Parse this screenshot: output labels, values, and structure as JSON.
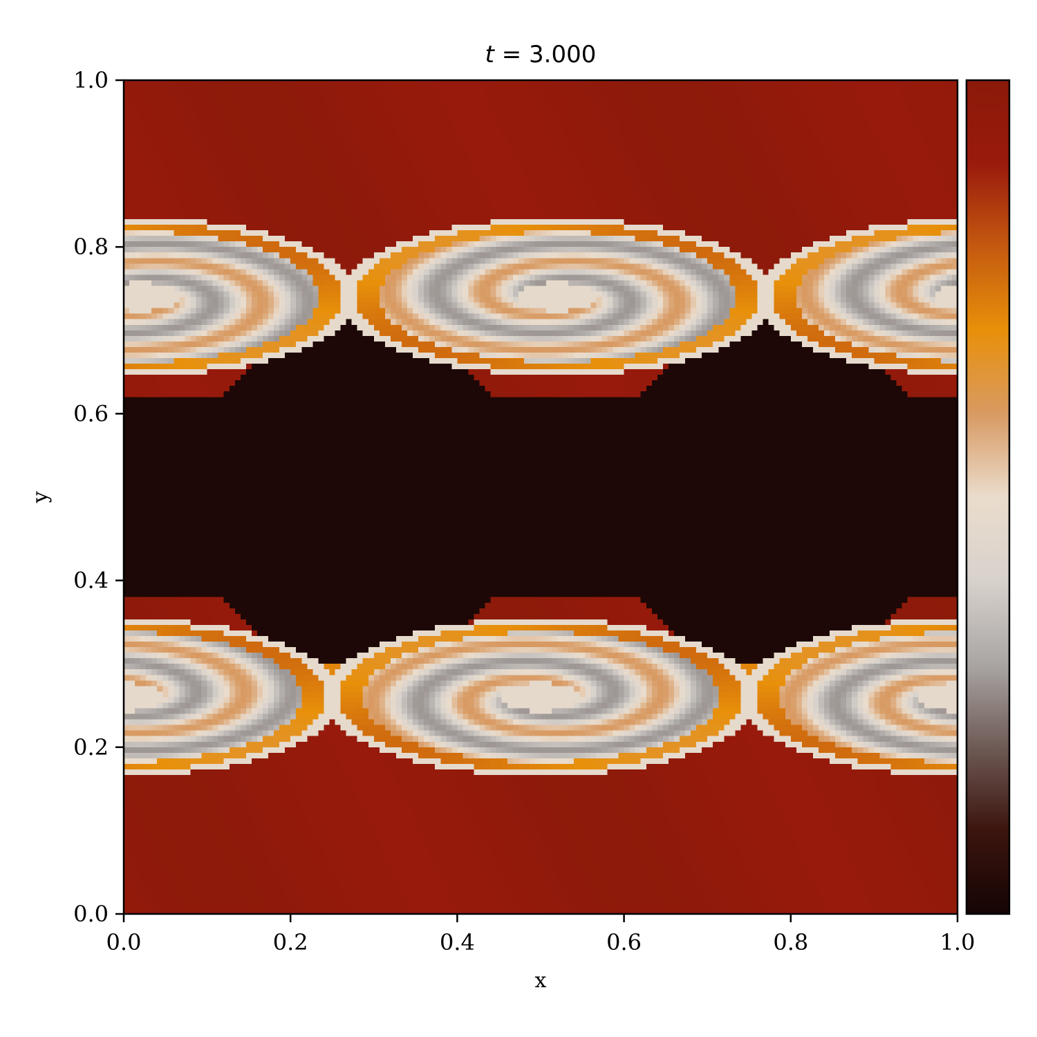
{
  "chart_data": {
    "type": "heatmap",
    "title": "t = 3.000",
    "title_parts": {
      "var": "t",
      "eq": " = ",
      "val": "3.000"
    },
    "xlabel": "x",
    "ylabel": "y",
    "xlim": [
      0.0,
      1.0
    ],
    "ylim": [
      0.0,
      1.0
    ],
    "xticks": [
      0.0,
      0.2,
      0.4,
      0.6,
      0.8,
      1.0
    ],
    "xtick_labels": [
      "0.0",
      "0.2",
      "0.4",
      "0.6",
      "0.8",
      "1.0"
    ],
    "yticks": [
      0.0,
      0.2,
      0.4,
      0.6,
      0.8,
      1.0
    ],
    "ytick_labels": [
      "0.0",
      "0.2",
      "0.4",
      "0.6",
      "0.8",
      "1.0"
    ],
    "grid": false,
    "colorbar": {
      "present": true,
      "placement": "right",
      "ticks_shown": false
    },
    "colormap": [
      "#150505",
      "#3c140e",
      "#6e5a55",
      "#aaa6a4",
      "#d8d2cc",
      "#eadccc",
      "#d89a62",
      "#e8900a",
      "#c45a10",
      "#9a1a0c",
      "#8a1a0a"
    ],
    "field": {
      "description_of_values": "Kelvin-Helmholtz rolls: two rows of spiral vortices, central dark band, red outer regions",
      "upper_vortex_row": {
        "y_center": 0.74,
        "x_centers": [
          0.0,
          0.5,
          1.0
        ],
        "amplitude_y": 0.1
      },
      "lower_vortex_row": {
        "y_center": 0.26,
        "x_centers": [
          0.0,
          0.5,
          1.0
        ],
        "amplitude_y": 0.1
      },
      "central_band": {
        "y_from": 0.38,
        "y_to": 0.62
      }
    }
  }
}
